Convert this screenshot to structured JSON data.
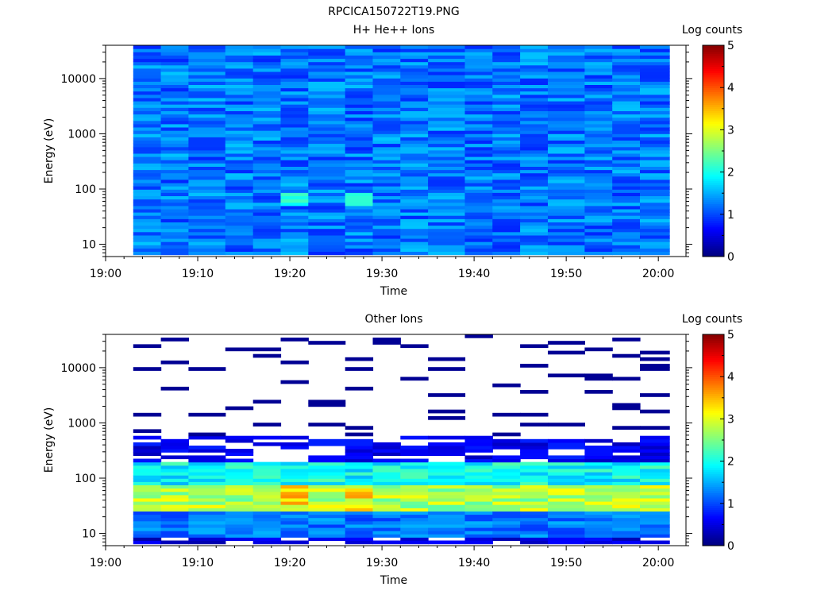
{
  "figure_title": "RPCICA150722T19.PNG",
  "chart_data": [
    {
      "type": "heatmap",
      "title": "H+ He++ Ions",
      "xlabel": "Time",
      "ylabel": "Energy (eV)",
      "x_ticks": [
        "19:00",
        "19:10",
        "19:20",
        "19:30",
        "19:40",
        "19:50",
        "20:00"
      ],
      "y_ticks": [
        "10",
        "100",
        "1000",
        "10000"
      ],
      "y_scale": "log",
      "ylim": [
        6,
        40000
      ],
      "time_bins_start": [
        "19:03",
        "19:06",
        "19:09",
        "19:13",
        "19:16",
        "19:19",
        "19:22",
        "19:26",
        "19:29",
        "19:32",
        "19:35",
        "19:39",
        "19:42",
        "19:45",
        "19:48",
        "19:52",
        "19:55",
        "19:58"
      ],
      "colorbar": {
        "label": "Log counts",
        "ticks": [
          "0",
          "1",
          "2",
          "3",
          "4",
          "5"
        ],
        "range": [
          0,
          5
        ],
        "colormap": "jet"
      },
      "pattern": "uniform background of about 0.8 to 1.6 log counts across all energies (6 eV to 40 keV) from 19:03 to 20:01, brighter patches (about 2 log counts) near 60-80 eV at 19:20 and 19:27"
    },
    {
      "type": "heatmap",
      "title": "Other Ions",
      "xlabel": "Time",
      "ylabel": "Energy (eV)",
      "x_ticks": [
        "19:00",
        "19:10",
        "19:20",
        "19:30",
        "19:40",
        "19:50",
        "20:00"
      ],
      "y_ticks": [
        "10",
        "100",
        "1000",
        "10000"
      ],
      "y_scale": "log",
      "ylim": [
        6,
        40000
      ],
      "time_bins_start": [
        "19:03",
        "19:06",
        "19:09",
        "19:13",
        "19:16",
        "19:19",
        "19:22",
        "19:26",
        "19:29",
        "19:32",
        "19:35",
        "19:39",
        "19:42",
        "19:45",
        "19:48",
        "19:52",
        "19:55",
        "19:58"
      ],
      "colorbar": {
        "label": "Log counts",
        "ticks": [
          "0",
          "1",
          "2",
          "3",
          "4",
          "5"
        ],
        "range": [
          0,
          5
        ],
        "colormap": "jet"
      },
      "pattern": "dense band from about 8 eV to 500 eV peaking near 40-60 eV at 2.5 to 3.8 log counts (strongest 19:20 and 19:27), weak sparse single-count lines above 500 eV up to 40 keV"
    }
  ]
}
